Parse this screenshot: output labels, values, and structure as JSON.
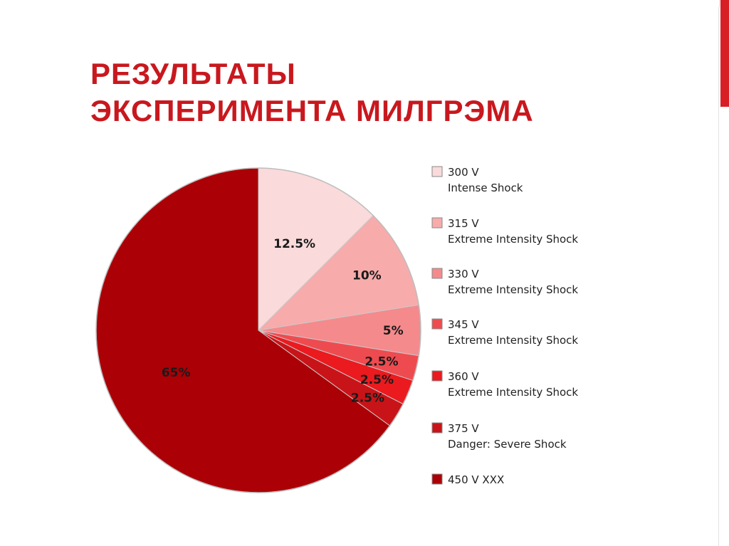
{
  "slide": {
    "title_line1": "РЕЗУЛЬТАТЫ",
    "title_line2": "ЭКСПЕРИМЕНТА МИЛГРЭМА",
    "accent_color": "#d81f26",
    "title_color": "#c8181e"
  },
  "chart_data": {
    "type": "pie",
    "title": "",
    "start_angle_deg": 0,
    "direction": "clockwise",
    "legend_position": "right",
    "slices": [
      {
        "label_line1": "300 V",
        "label_line2": "Intense Shock",
        "value": 12.5,
        "value_label": "12.5%",
        "color": "#fadadb"
      },
      {
        "label_line1": "315 V",
        "label_line2": "Extreme Intensity Shock",
        "value": 10,
        "value_label": "10%",
        "color": "#f7abab"
      },
      {
        "label_line1": "330 V",
        "label_line2": "Extreme Intensity Shock",
        "value": 5,
        "value_label": "5%",
        "color": "#f48a8c"
      },
      {
        "label_line1": "345 V",
        "label_line2": "Extreme Intensity Shock",
        "value": 2.5,
        "value_label": "2.5%",
        "color": "#ee4b50"
      },
      {
        "label_line1": "360 V",
        "label_line2": "Extreme Intensity Shock",
        "value": 2.5,
        "value_label": "2.5%",
        "color": "#ea1a1f"
      },
      {
        "label_line1": "375 V",
        "label_line2": "Danger: Severe Shock",
        "value": 2.5,
        "value_label": "2.5%",
        "color": "#c81418"
      },
      {
        "label_line1": "450 V XXX",
        "label_line2": "",
        "value": 65,
        "value_label": "65%",
        "color": "#ab0006"
      }
    ]
  }
}
